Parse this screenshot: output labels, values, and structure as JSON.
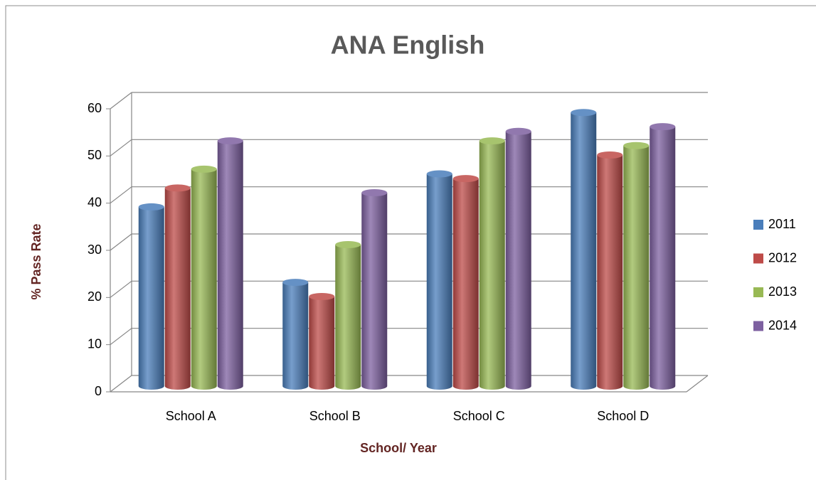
{
  "chart_data": {
    "type": "bar3d",
    "title": "ANA English",
    "xlabel": "School/ Year",
    "ylabel": "% Pass Rate",
    "categories": [
      "School A",
      "School B",
      "School C",
      "School D"
    ],
    "series": [
      {
        "name": "2011",
        "color": "#4a7ebb",
        "values": [
          38,
          22,
          45,
          58
        ]
      },
      {
        "name": "2012",
        "color": "#be4b48",
        "values": [
          42,
          19,
          44,
          49
        ]
      },
      {
        "name": "2013",
        "color": "#98b954",
        "values": [
          46,
          30,
          52,
          51
        ]
      },
      {
        "name": "2014",
        "color": "#7d60a0",
        "values": [
          52,
          41,
          54,
          55
        ]
      }
    ],
    "ylim": [
      0,
      60
    ],
    "yticks": [
      0,
      10,
      20,
      30,
      40,
      50,
      60
    ],
    "grid": true,
    "legend": "right"
  }
}
